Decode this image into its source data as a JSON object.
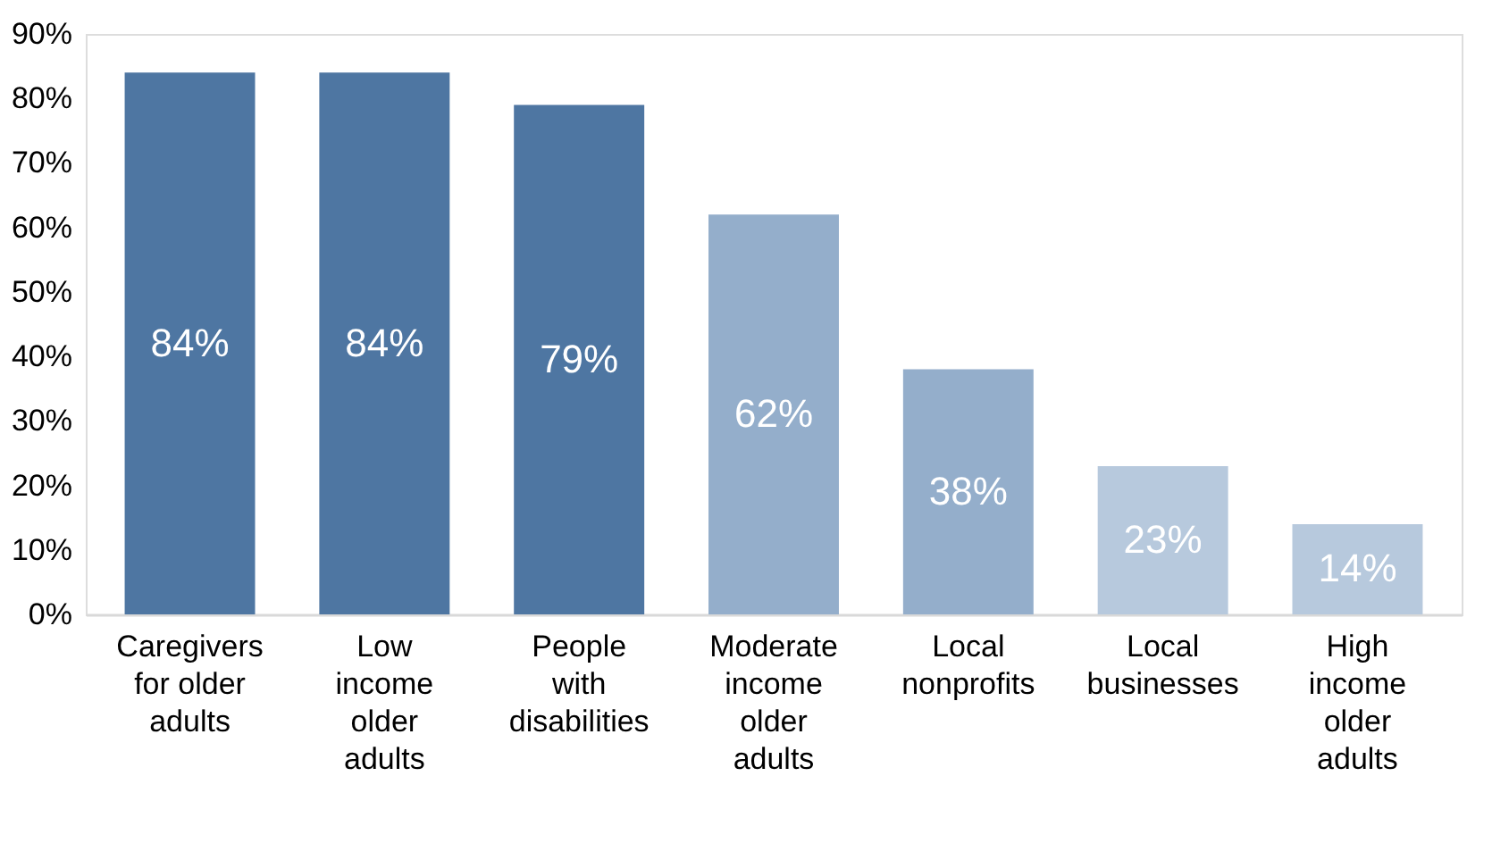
{
  "chart_data": {
    "type": "bar",
    "categories": [
      "Caregivers\nfor older\nadults",
      "Low\nincome\nolder\nadults",
      "People\nwith\ndisabilities",
      "Moderate\nincome\nolder\nadults",
      "Local\nnonprofits",
      "Local\nbusinesses",
      "High\nincome\nolder\nadults"
    ],
    "values": [
      84,
      84,
      79,
      62,
      38,
      23,
      14
    ],
    "colors": [
      "#4e76a2",
      "#4e76a2",
      "#4e76a2",
      "#94aecb",
      "#94aecb",
      "#b7c9dd",
      "#b7c9dd"
    ],
    "value_labels": [
      "84%",
      "84%",
      "79%",
      "62%",
      "38%",
      "23%",
      "14%"
    ],
    "ylim": [
      0,
      90
    ],
    "yticks": [
      {
        "value": 0,
        "label": "0%"
      },
      {
        "value": 10,
        "label": "10%"
      },
      {
        "value": 20,
        "label": "20%"
      },
      {
        "value": 30,
        "label": "30%"
      },
      {
        "value": 40,
        "label": "40%"
      },
      {
        "value": 50,
        "label": "50%"
      },
      {
        "value": 60,
        "label": "60%"
      },
      {
        "value": 70,
        "label": "70%"
      },
      {
        "value": 80,
        "label": "80%"
      },
      {
        "value": 90,
        "label": "90%"
      }
    ],
    "grid": false
  }
}
